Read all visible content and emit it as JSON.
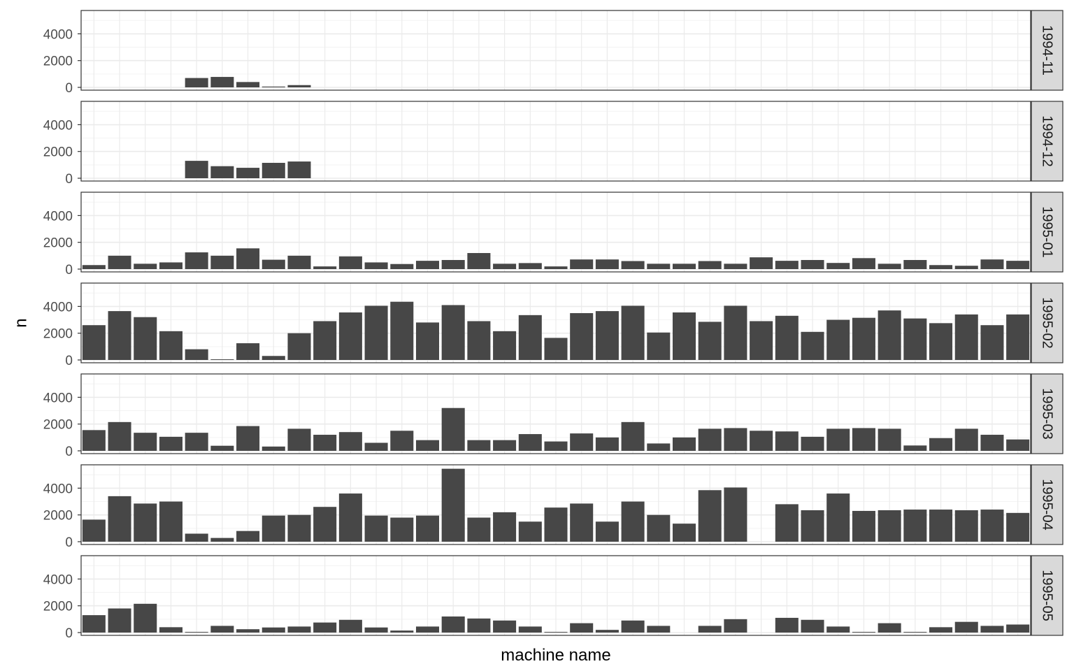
{
  "chart_data": {
    "type": "bar",
    "facet": "rows",
    "xlabel": "machine name",
    "ylabel": "n",
    "ylim": [
      0,
      5500
    ],
    "yticks": [
      0,
      2000,
      4000
    ],
    "x_tick_labels_visible": false,
    "grid": true,
    "n_categories": 37,
    "colors": {
      "bar": "#474747",
      "panel_border": "#333333",
      "strip_fill": "#d9d9d9",
      "grid_major": "#ebebeb",
      "grid_minor": "#f3f3f3"
    },
    "panels": [
      {
        "label": "1994-11",
        "values": [
          0,
          0,
          0,
          0,
          700,
          780,
          400,
          60,
          170,
          0,
          0,
          0,
          0,
          0,
          0,
          0,
          0,
          0,
          0,
          0,
          0,
          0,
          0,
          0,
          0,
          0,
          0,
          0,
          0,
          0,
          0,
          0,
          0,
          0,
          0,
          0,
          0
        ]
      },
      {
        "label": "1994-12",
        "values": [
          0,
          0,
          0,
          0,
          1300,
          900,
          780,
          1150,
          1250,
          0,
          0,
          0,
          0,
          0,
          0,
          0,
          0,
          0,
          0,
          0,
          0,
          0,
          0,
          0,
          0,
          0,
          0,
          0,
          0,
          0,
          0,
          0,
          0,
          0,
          0,
          0,
          0
        ]
      },
      {
        "label": "1995-01",
        "values": [
          300,
          1000,
          400,
          500,
          1250,
          1000,
          1550,
          700,
          1000,
          200,
          950,
          500,
          380,
          620,
          680,
          1200,
          400,
          450,
          200,
          720,
          720,
          600,
          400,
          400,
          600,
          400,
          880,
          620,
          680,
          460,
          820,
          400,
          680,
          300,
          250,
          720,
          620
        ]
      },
      {
        "label": "1995-02",
        "values": [
          2600,
          3650,
          3200,
          2150,
          800,
          50,
          1250,
          300,
          2000,
          2900,
          3550,
          4050,
          4350,
          2800,
          4100,
          2900,
          2150,
          3350,
          1650,
          3500,
          3650,
          4050,
          2050,
          3550,
          2850,
          4050,
          2900,
          3300,
          2100,
          3000,
          3150,
          3700,
          3100,
          2750,
          3400,
          2600,
          3400
        ]
      },
      {
        "label": "1995-03",
        "values": [
          1550,
          2150,
          1350,
          1050,
          1350,
          380,
          1850,
          320,
          1650,
          1200,
          1400,
          600,
          1500,
          800,
          3200,
          800,
          800,
          1250,
          700,
          1300,
          1000,
          2150,
          550,
          1000,
          1650,
          1700,
          1500,
          1450,
          1050,
          1650,
          1700,
          1650,
          400,
          950,
          1650,
          1200,
          850
        ]
      },
      {
        "label": "1995-04",
        "values": [
          1650,
          3400,
          2850,
          3000,
          600,
          280,
          800,
          1950,
          2000,
          2600,
          3600,
          1950,
          1800,
          1950,
          5450,
          1800,
          2200,
          1500,
          2550,
          2850,
          1500,
          3000,
          2000,
          1350,
          3850,
          4050,
          0,
          2800,
          2350,
          3600,
          2300,
          2350,
          2400,
          2400,
          2350,
          2400,
          2150
        ]
      },
      {
        "label": "1995-05",
        "values": [
          1300,
          1800,
          2150,
          400,
          50,
          500,
          250,
          380,
          450,
          750,
          950,
          380,
          150,
          450,
          1200,
          1050,
          900,
          450,
          50,
          700,
          200,
          900,
          500,
          0,
          500,
          1000,
          0,
          1100,
          950,
          450,
          50,
          700,
          50,
          400,
          800,
          500,
          600
        ]
      }
    ]
  }
}
